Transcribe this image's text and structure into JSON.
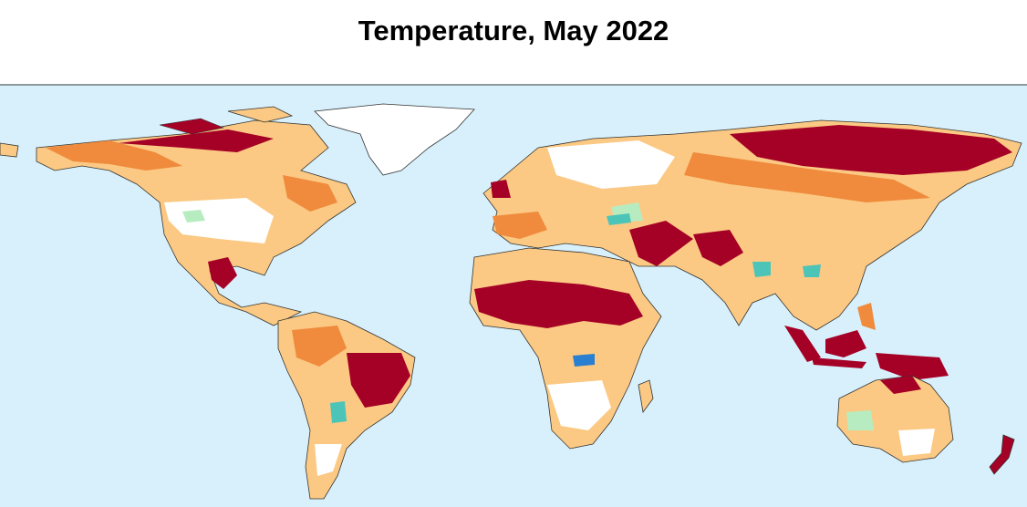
{
  "title": "Temperature, May 2022"
}
